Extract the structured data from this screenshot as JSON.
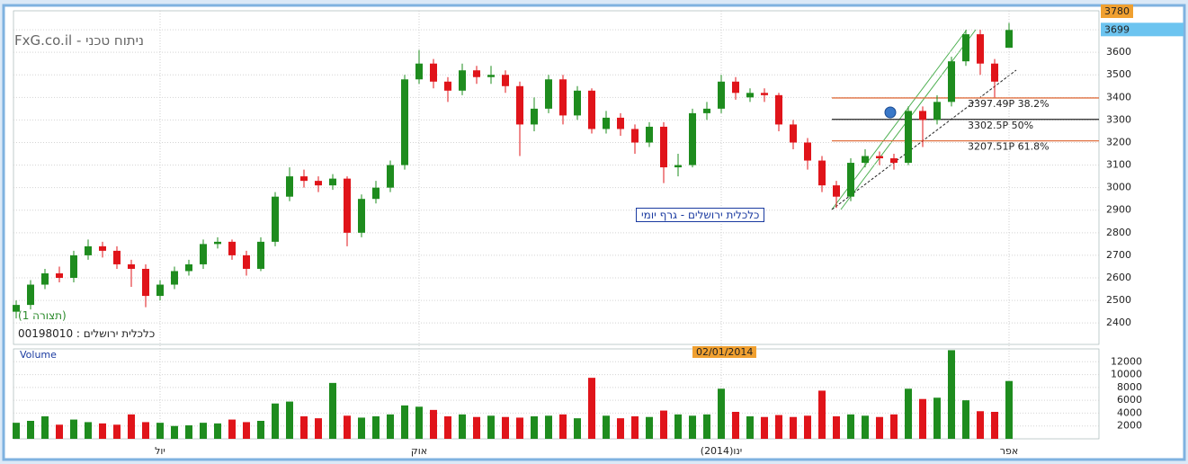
{
  "chart_data": [
    {
      "type": "candlestick",
      "title": "כלכלית ירושלים - גרף יומי",
      "watermark": "ניתוח טכני - FxG.co.il",
      "config_label": "(תצורה 1)",
      "symbol_label": "כלכלית ירושלים : 00198010",
      "categories": [
        null,
        null,
        null,
        null,
        null,
        null,
        null,
        null,
        null,
        null,
        "יול",
        null,
        null,
        null,
        null,
        null,
        null,
        null,
        null,
        null,
        null,
        null,
        null,
        null,
        null,
        null,
        null,
        null,
        "אוק",
        null,
        null,
        null,
        null,
        null,
        null,
        null,
        null,
        null,
        null,
        null,
        null,
        null,
        null,
        null,
        null,
        null,
        null,
        null,
        null,
        "ינו(2014)",
        null,
        null,
        null,
        null,
        null,
        null,
        null,
        null,
        null,
        null,
        null,
        null,
        null,
        null,
        null,
        null,
        null,
        null,
        null,
        "אפר"
      ],
      "open": [
        2450,
        2480,
        2570,
        2620,
        2600,
        2700,
        2740,
        2720,
        2660,
        2640,
        2520,
        2570,
        2630,
        2660,
        2750,
        2760,
        2700,
        2640,
        2760,
        2960,
        3050,
        3030,
        3010,
        3040,
        2800,
        2950,
        3000,
        3100,
        3480,
        3550,
        3470,
        3430,
        3520,
        3490,
        3500,
        3450,
        3280,
        3350,
        3480,
        3320,
        3430,
        3260,
        3310,
        3260,
        3200,
        3270,
        3090,
        3100,
        3330,
        3350,
        3470,
        3400,
        3420,
        3410,
        3280,
        3200,
        3120,
        3010,
        2960,
        3110,
        3140,
        3130,
        3110,
        3340,
        3300,
        3380,
        3560,
        3680,
        3550,
        3620
      ],
      "high": [
        2500,
        2590,
        2640,
        2650,
        2720,
        2770,
        2760,
        2740,
        2680,
        2660,
        2590,
        2650,
        2680,
        2770,
        2780,
        2770,
        2720,
        2780,
        2980,
        3090,
        3080,
        3050,
        3060,
        3050,
        2970,
        3030,
        3120,
        3500,
        3610,
        3570,
        3490,
        3550,
        3540,
        3540,
        3520,
        3470,
        3400,
        3500,
        3500,
        3450,
        3440,
        3340,
        3330,
        3280,
        3290,
        3290,
        3150,
        3350,
        3380,
        3500,
        3490,
        3440,
        3440,
        3420,
        3300,
        3220,
        3140,
        3030,
        3130,
        3170,
        3160,
        3150,
        3360,
        3360,
        3410,
        3580,
        3700,
        3700,
        3570,
        3730
      ],
      "low": [
        2420,
        2460,
        2550,
        2580,
        2580,
        2680,
        2690,
        2640,
        2560,
        2470,
        2500,
        2550,
        2610,
        2640,
        2730,
        2680,
        2610,
        2630,
        2740,
        2940,
        3000,
        2980,
        2990,
        2740,
        2780,
        2930,
        2980,
        3080,
        3460,
        3440,
        3380,
        3410,
        3460,
        3460,
        3420,
        3140,
        3250,
        3330,
        3280,
        3300,
        3240,
        3240,
        3230,
        3150,
        3180,
        3020,
        3050,
        3090,
        3300,
        3330,
        3390,
        3380,
        3380,
        3250,
        3170,
        3080,
        2980,
        2910,
        2940,
        3090,
        3100,
        3080,
        3100,
        3180,
        3280,
        3360,
        3540,
        3500,
        3400,
        3620
      ],
      "close": [
        2480,
        2570,
        2620,
        2600,
        2700,
        2740,
        2720,
        2660,
        2640,
        2520,
        2570,
        2630,
        2660,
        2750,
        2760,
        2700,
        2640,
        2760,
        2960,
        3050,
        3030,
        3010,
        3040,
        2800,
        2950,
        3000,
        3100,
        3480,
        3550,
        3470,
        3430,
        3520,
        3490,
        3500,
        3450,
        3280,
        3350,
        3480,
        3320,
        3430,
        3260,
        3310,
        3260,
        3200,
        3270,
        3090,
        3100,
        3330,
        3350,
        3470,
        3420,
        3420,
        3410,
        3280,
        3200,
        3120,
        3010,
        2960,
        3110,
        3140,
        3130,
        3110,
        3340,
        3300,
        3380,
        3560,
        3680,
        3550,
        3470,
        3699
      ],
      "up_color": "#1e8c1e",
      "down_color": "#e0141a",
      "ylim": [
        2305,
        3784
      ],
      "yticks": [
        2400,
        2500,
        2600,
        2700,
        2800,
        2900,
        3000,
        3100,
        3200,
        3300,
        3400,
        3500,
        3600,
        3700
      ],
      "grid": true,
      "fib_levels": [
        {
          "value": 3397.49,
          "label": "3397.49P  38.2%"
        },
        {
          "value": 3302.5,
          "label": "3302.5P  50%"
        },
        {
          "value": 3207.51,
          "label": "3207.51P  61.8%"
        }
      ],
      "price_markers": [
        3780,
        3699
      ]
    },
    {
      "type": "bar",
      "title": "Volume",
      "crosshair_label": "02/01/2014",
      "values": [
        2500,
        2800,
        3500,
        2200,
        3000,
        2600,
        2400,
        2200,
        3800,
        2600,
        2500,
        2000,
        2100,
        2500,
        2400,
        3000,
        2600,
        2800,
        5500,
        5800,
        3500,
        3200,
        8700,
        3600,
        3300,
        3500,
        3800,
        5200,
        5000,
        4500,
        3500,
        3800,
        3400,
        3600,
        3400,
        3300,
        3500,
        3600,
        3800,
        3200,
        9500,
        3600,
        3200,
        3500,
        3400,
        4400,
        3800,
        3600,
        3800,
        7800,
        4200,
        3500,
        3400,
        3700,
        3400,
        3600,
        7500,
        3500,
        3800,
        3600,
        3400,
        3800,
        7800,
        6200,
        6400,
        13800,
        6000,
        4300,
        4200,
        9000
      ],
      "ylim": [
        0,
        14000
      ],
      "yticks": [
        2000,
        4000,
        6000,
        8000,
        10000,
        12000
      ],
      "grid": true
    }
  ]
}
